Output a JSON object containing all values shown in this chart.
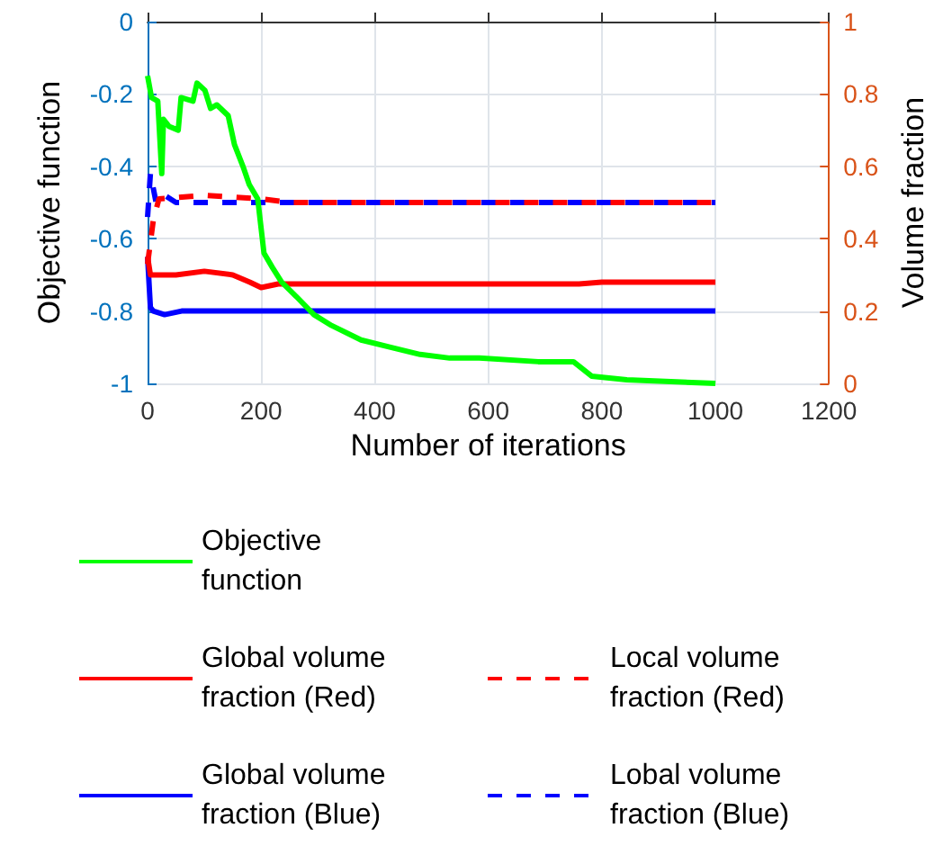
{
  "chart_data": {
    "type": "line",
    "xlabel": "Number of iterations",
    "ylabel": "Objective function",
    "y2label": "Volume fraction",
    "xlim": [
      0,
      1200
    ],
    "xticks": [
      0,
      200,
      400,
      600,
      800,
      1000,
      1200
    ],
    "ylim": [
      -1,
      0
    ],
    "yticks": [
      -1,
      -0.8,
      -0.6,
      -0.4,
      -0.2,
      0
    ],
    "y2lim": [
      0,
      1
    ],
    "y2ticks": [
      0,
      0.2,
      0.4,
      0.6,
      0.8,
      1
    ],
    "grid": true,
    "legend": "bottom",
    "marker": "none",
    "series": [
      {
        "name": "Objective function",
        "color": "#00ff00",
        "line_style": "solid",
        "x": [
          0,
          7,
          18,
          25,
          28,
          38,
          54,
          59,
          80,
          87,
          101,
          111,
          122,
          142,
          153,
          168,
          179,
          194,
          205,
          220,
          236,
          262,
          293,
          324,
          376,
          428,
          480,
          532,
          584,
          688,
          750,
          782,
          844,
          1000
        ],
        "values": [
          -0.15,
          -0.21,
          -0.22,
          -0.42,
          -0.27,
          -0.29,
          -0.3,
          -0.21,
          -0.22,
          -0.17,
          -0.19,
          -0.24,
          -0.23,
          -0.26,
          -0.34,
          -0.4,
          -0.45,
          -0.49,
          -0.64,
          -0.68,
          -0.72,
          -0.76,
          -0.81,
          -0.84,
          -0.88,
          -0.9,
          -0.92,
          -0.93,
          -0.93,
          -0.94,
          -0.94,
          -0.98,
          -0.99,
          -1
        ]
      },
      {
        "name": "Global volume fraction (Red)",
        "color": "#ff0000",
        "line_style": "solid",
        "axis": "y2",
        "x": [
          0,
          5,
          50,
          100,
          150,
          180,
          200,
          230,
          300,
          760,
          800,
          1000
        ],
        "values": [
          0.35,
          0.3,
          0.3,
          0.31,
          0.3,
          0.28,
          0.265,
          0.275,
          0.275,
          0.275,
          0.28,
          0.28
        ]
      },
      {
        "name": "Local volume fraction (Red)",
        "color": "#ff0000",
        "line_style": "dashed",
        "axis": "y2",
        "x": [
          0,
          10,
          20,
          100,
          200,
          250,
          1000
        ],
        "values": [
          0.33,
          0.45,
          0.51,
          0.52,
          0.51,
          0.5,
          0.5
        ]
      },
      {
        "name": "Global volume fraction (Blue)",
        "color": "#0000ff",
        "line_style": "solid",
        "axis": "y2",
        "x": [
          0,
          5,
          10,
          30,
          60,
          1000
        ],
        "values": [
          0.35,
          0.21,
          0.2,
          0.19,
          0.2,
          0.2
        ]
      },
      {
        "name": "Lobal volume fraction (Blue)",
        "color": "#0000ff",
        "line_style": "dashed",
        "axis": "y2",
        "x": [
          0,
          5,
          15,
          30,
          50,
          1000
        ],
        "values": [
          0.46,
          0.58,
          0.5,
          0.52,
          0.5,
          0.5
        ]
      }
    ]
  }
}
